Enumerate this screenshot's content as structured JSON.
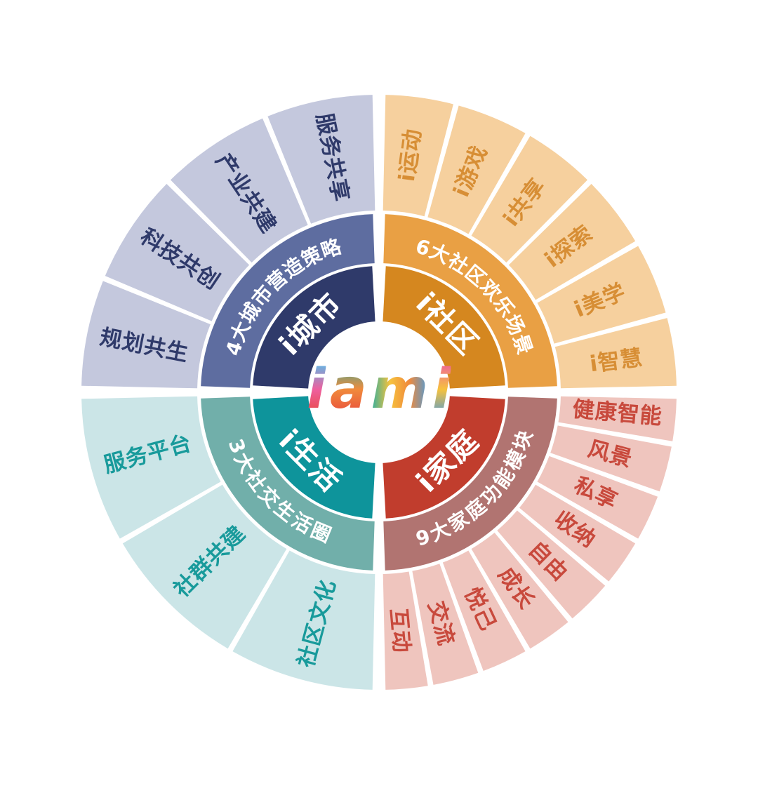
{
  "background_color": "#ffffff",
  "logo": {
    "brand_text": "iami",
    "letters": [
      {
        "ch": "i",
        "solid": "#58BCE9",
        "angle": 180,
        "colors": [
          "#58BCE9",
          "#EE5F9E",
          "#E8483C"
        ]
      },
      {
        "ch": "a",
        "solid": "#EA6A3C",
        "angle": 180,
        "colors": [
          "#2FAE9E",
          "#F08A3C",
          "#E8483C"
        ]
      },
      {
        "ch": "m",
        "solid": "#3FAE9B",
        "angle": 90,
        "colors": [
          "#2FAE9E",
          "#F6C23D",
          "#F08A3C",
          "#4D9BD8"
        ]
      },
      {
        "ch": "i",
        "solid": "#F6C23D",
        "angle": 180,
        "colors": [
          "#EE5F9E",
          "#F6C23D",
          "#4D9BD8"
        ]
      }
    ]
  },
  "quadrants": [
    {
      "id": "city",
      "start": 180,
      "end": 270,
      "inner": {
        "label": "i城市",
        "color": "#2F3A6A"
      },
      "middle": {
        "label": "4大城市营造策略",
        "color": "#5E6DA0"
      },
      "outer": {
        "color": "#C4C8DD",
        "text_color": "#2F3A6A",
        "segments": [
          "规划共生",
          "科技共创",
          "产业共建",
          "服务共享"
        ]
      }
    },
    {
      "id": "community",
      "start": 270,
      "end": 360,
      "inner": {
        "label": "i社区",
        "color": "#D5871F"
      },
      "middle": {
        "label": "6大社区欢乐场景",
        "color": "#E9A044"
      },
      "outer": {
        "color": "#F6D09E",
        "text_color": "#D78E35",
        "segments": [
          "i运动",
          "i游戏",
          "i共享",
          "i探索",
          "i美学",
          "i智慧"
        ]
      }
    },
    {
      "id": "family",
      "start": 0,
      "end": 90,
      "inner": {
        "label": "i家庭",
        "color": "#C13D2D"
      },
      "middle": {
        "label": "9大家庭功能模块",
        "color": "#B17471"
      },
      "outer": {
        "color": "#EFC5BE",
        "text_color": "#C8493C",
        "segments": [
          "健康智能",
          "风景",
          "私享",
          "收纳",
          "自由",
          "成长",
          "悦己",
          "交流",
          "互动"
        ]
      }
    },
    {
      "id": "life",
      "start": 90,
      "end": 180,
      "inner": {
        "label": "i生活",
        "color": "#0E949B"
      },
      "middle": {
        "label": "3大社交生活圈",
        "color": "#71AFAA"
      },
      "outer": {
        "color": "#CBE5E7",
        "text_color": "#189A9B",
        "segments": [
          "社区文化",
          "社群共建",
          "服务平台"
        ]
      }
    }
  ]
}
